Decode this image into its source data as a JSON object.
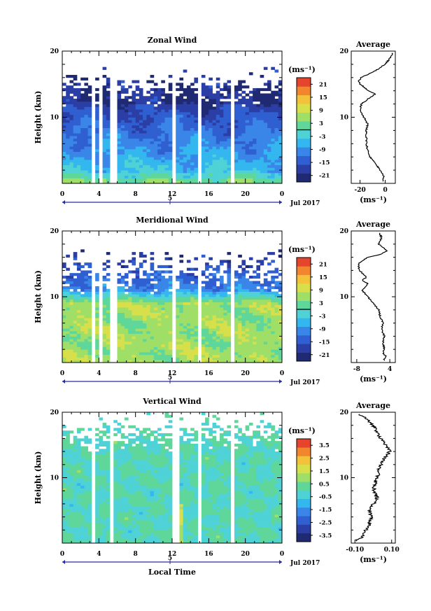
{
  "date_label": "Jul 2017",
  "x_axis_label": "Local Time",
  "y_axis_label": "Height (km)",
  "average_title": "Average",
  "unit_label": "(ms⁻¹)",
  "chart_data": [
    {
      "type": "heatmap",
      "title": "Zonal Wind",
      "ylabel": "Height (km)",
      "xlim": [
        0,
        24
      ],
      "ylim": [
        0,
        20
      ],
      "x_ticks": [
        "0",
        "4",
        "8",
        "12",
        "16",
        "20",
        "0"
      ],
      "y_ticks": [
        "10",
        "20"
      ],
      "day_marker": "5",
      "colorbar": {
        "label": "(ms⁻¹)",
        "ticks": [
          "21",
          "15",
          "9",
          "3",
          "-3",
          "-9",
          "-15",
          "-21"
        ],
        "range": [
          -24,
          24
        ],
        "zero_line": true
      },
      "average": {
        "title": "Average",
        "xlabel": "(ms⁻¹)",
        "x_ticks": [
          "-20",
          "0"
        ],
        "y_ticks": [
          "10",
          "20"
        ],
        "xlim": [
          -27,
          8
        ],
        "profile": [
          [
            0.5,
            -2
          ],
          [
            1,
            -1
          ],
          [
            2,
            -4
          ],
          [
            3,
            -8
          ],
          [
            4,
            -12
          ],
          [
            5,
            -14
          ],
          [
            6,
            -15
          ],
          [
            7,
            -15
          ],
          [
            8,
            -15
          ],
          [
            9,
            -14
          ],
          [
            10,
            -17
          ],
          [
            11,
            -20
          ],
          [
            12,
            -19
          ],
          [
            13,
            -12
          ],
          [
            13.5,
            -8
          ],
          [
            14,
            -13
          ],
          [
            15,
            -20
          ],
          [
            15.5,
            -21
          ],
          [
            16,
            -19
          ],
          [
            17,
            -8
          ],
          [
            18,
            0
          ],
          [
            18.5,
            2
          ],
          [
            19,
            4
          ],
          [
            19.5,
            6
          ],
          [
            20,
            5
          ]
        ]
      }
    },
    {
      "type": "heatmap",
      "title": "Meridional Wind",
      "ylabel": "Height (km)",
      "xlim": [
        0,
        24
      ],
      "ylim": [
        0,
        20
      ],
      "x_ticks": [
        "0",
        "4",
        "8",
        "12",
        "16",
        "20",
        "0"
      ],
      "y_ticks": [
        "10",
        "20"
      ],
      "day_marker": "5",
      "colorbar": {
        "label": "(ms⁻¹)",
        "ticks": [
          "21",
          "15",
          "9",
          "3",
          "-3",
          "-9",
          "-15",
          "-21"
        ],
        "range": [
          -24,
          24
        ],
        "zero_line": true
      },
      "average": {
        "title": "Average",
        "xlabel": "(ms⁻¹)",
        "x_ticks": [
          "-8",
          "4"
        ],
        "y_ticks": [
          "10",
          "20"
        ],
        "xlim": [
          -10,
          6
        ],
        "profile": [
          [
            0.5,
            2.0
          ],
          [
            1,
            2.5
          ],
          [
            1.5,
            1.5
          ],
          [
            2,
            2.0
          ],
          [
            3,
            1.5
          ],
          [
            4,
            2.0
          ],
          [
            5,
            1.0
          ],
          [
            6,
            1.5
          ],
          [
            7,
            0.5
          ],
          [
            8,
            0.0
          ],
          [
            9,
            -2.0
          ],
          [
            10,
            -4.0
          ],
          [
            10.5,
            -5.0
          ],
          [
            11,
            -6.0
          ],
          [
            12,
            -4.0
          ],
          [
            12.5,
            -6.0
          ],
          [
            13,
            -4.5
          ],
          [
            14,
            -7.0
          ],
          [
            15,
            -7.5
          ],
          [
            16,
            -4.0
          ],
          [
            16.5,
            1.0
          ],
          [
            17,
            3.0
          ],
          [
            18,
            0.0
          ],
          [
            19,
            1.0
          ],
          [
            20,
            0.0
          ]
        ]
      }
    },
    {
      "type": "heatmap",
      "title": "Vertical Wind",
      "ylabel": "Height (km)",
      "xlabel": "Local Time",
      "xlim": [
        0,
        24
      ],
      "ylim": [
        0,
        20
      ],
      "x_ticks": [
        "0",
        "4",
        "8",
        "12",
        "16",
        "20",
        "0"
      ],
      "y_ticks": [
        "10",
        "20"
      ],
      "day_marker": "5",
      "colorbar": {
        "label": "(ms⁻¹)",
        "ticks": [
          "3.5",
          "2.5",
          "1.5",
          "0.5",
          "-0.5",
          "-1.5",
          "-2.5",
          "-3.5"
        ],
        "range": [
          -4,
          4
        ],
        "zero_line": false
      },
      "average": {
        "title": "Average",
        "xlabel": "(ms⁻¹)",
        "x_ticks": [
          "-0.10",
          "0.10"
        ],
        "y_ticks": [
          "10",
          "20"
        ],
        "xlim": [
          -0.12,
          0.12
        ],
        "profile": [
          [
            0.5,
            -0.09
          ],
          [
            1,
            -0.06
          ],
          [
            2,
            -0.04
          ],
          [
            3,
            -0.02
          ],
          [
            4,
            -0.01
          ],
          [
            5,
            -0.02
          ],
          [
            6,
            0.0
          ],
          [
            7,
            0.02
          ],
          [
            8,
            0.0
          ],
          [
            9,
            0.01
          ],
          [
            10,
            0.02
          ],
          [
            11,
            0.03
          ],
          [
            12,
            0.04
          ],
          [
            13,
            0.06
          ],
          [
            14,
            0.09
          ],
          [
            15,
            0.07
          ],
          [
            16,
            0.04
          ],
          [
            17,
            0.02
          ],
          [
            18,
            0.0
          ],
          [
            19,
            -0.04
          ],
          [
            20,
            -0.09
          ]
        ]
      }
    }
  ]
}
